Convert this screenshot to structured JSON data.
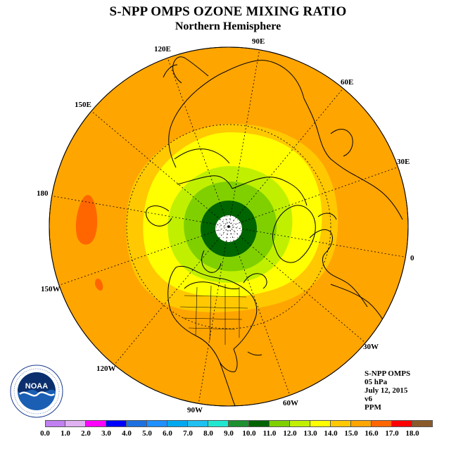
{
  "title": "S-NPP OMPS OZONE MIXING RATIO",
  "subtitle": "Northern Hemisphere",
  "longitude_labels": [
    "90E",
    "60E",
    "30E",
    "0",
    "30W",
    "60W",
    "90W",
    "120W",
    "150W",
    "180",
    "150E",
    "120E"
  ],
  "info": {
    "instrument": "S-NPP OMPS",
    "level": "05 hPa",
    "date": "July 12, 2015",
    "version": "v6",
    "units": "PPM"
  },
  "logo": {
    "text": "NOAA",
    "icon": "noaa-logo"
  },
  "colorbar": {
    "ticks": [
      "0.0",
      "1.0",
      "2.0",
      "3.0",
      "4.0",
      "5.0",
      "6.0",
      "7.0",
      "8.0",
      "9.0",
      "10.0",
      "11.0",
      "12.0",
      "13.0",
      "14.0",
      "15.0",
      "16.0",
      "17.0",
      "18.0"
    ],
    "colors": [
      "#c080f0",
      "#e0b0f0",
      "#ff00ff",
      "#0000ff",
      "#1e70e0",
      "#1e90ff",
      "#00a8f0",
      "#20c0f0",
      "#20e8d0",
      "#1e9030",
      "#006400",
      "#80d000",
      "#c0f000",
      "#ffff00",
      "#ffc800",
      "#ffa500",
      "#ff6600",
      "#ff0000",
      "#8b5a2b"
    ]
  },
  "field": {
    "background_range": "14.0-15.0",
    "rings": [
      {
        "range": "13.0-14.0",
        "color": "#ffc800"
      },
      {
        "range": "12.0-13.0",
        "color": "#ffff00"
      },
      {
        "range": "11.0-12.0",
        "color": "#c0f000"
      },
      {
        "range": "10.0-11.0",
        "color": "#80d000"
      },
      {
        "range": "9.0-10.0",
        "color": "#006400"
      }
    ],
    "patches": [
      {
        "range": "15.0-16.0",
        "color": "#ff6600"
      }
    ]
  }
}
